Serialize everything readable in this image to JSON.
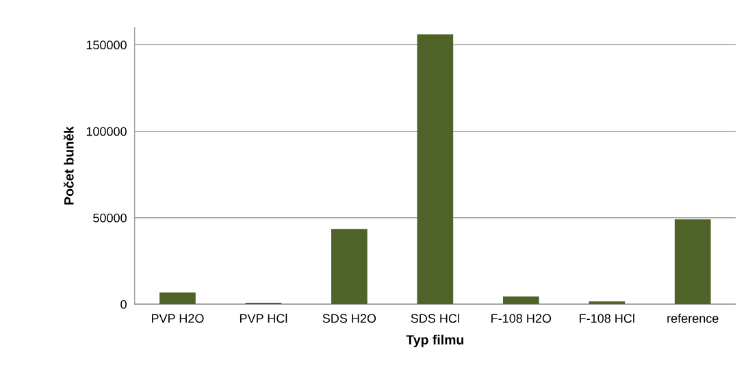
{
  "chart_data": {
    "type": "bar",
    "xlabel": "Typ filmu",
    "ylabel": "Počet buněk",
    "categories": [
      "PVP H2O",
      "PVP HCl",
      "SDS H2O",
      "SDS HCl",
      "F-108 H2O",
      "F-108 HCl",
      "reference"
    ],
    "values": [
      6800,
      800,
      43500,
      156000,
      4500,
      1600,
      49000
    ],
    "color": "#4f6228",
    "ylim": [
      0,
      160000
    ],
    "yticks": [
      0,
      50000,
      100000,
      150000
    ],
    "grid": "y",
    "legend": false
  }
}
